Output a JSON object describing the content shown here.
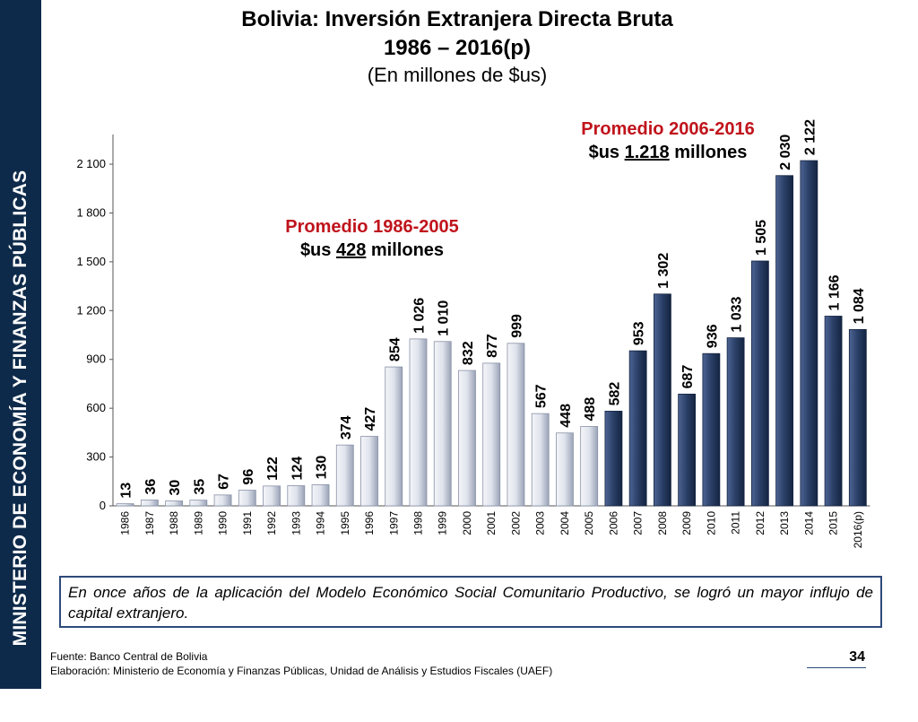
{
  "sidebar": {
    "label": "MINISTERIO DE ECONOMÍA Y FINANZAS PÚBLICAS"
  },
  "header": {
    "title_line1": "Bolivia: Inversión Extranjera Directa Bruta",
    "title_line2": "1986 – 2016(p)",
    "subtitle": "(En millones de $us)"
  },
  "annotations": {
    "avg1_heading": "Promedio 1986-2005",
    "avg1_prefix": "$us ",
    "avg1_value": "428",
    "avg1_suffix": " millones",
    "avg2_heading": "Promedio 2006-2016",
    "avg2_prefix": "$us ",
    "avg2_value": "1.218",
    "avg2_suffix": " millones"
  },
  "note": "En once años de la aplicación del Modelo Económico Social Comunitario Productivo, se logró un mayor influjo de capital extranjero.",
  "footer": {
    "source": "Fuente: Banco Central de Bolivia",
    "elaboration": "Elaboración: Ministerio de Economía y Finanzas Públicas, Unidad de Análisis y Estudios Fiscales (UAEF)"
  },
  "page_number": "34",
  "colors": {
    "sidebar": "#0e2a4a",
    "bar_light": "#dfe3ec",
    "bar_dark": "#2a3f66",
    "avg_heading": "#c0141c"
  },
  "chart_data": {
    "type": "bar",
    "categories": [
      "1986",
      "1987",
      "1988",
      "1989",
      "1990",
      "1991",
      "1992",
      "1993",
      "1994",
      "1995",
      "1996",
      "1997",
      "1998",
      "1999",
      "2000",
      "2001",
      "2002",
      "2003",
      "2004",
      "2005",
      "2006",
      "2007",
      "2008",
      "2009",
      "2010",
      "2011",
      "2012",
      "2013",
      "2014",
      "2015",
      "2016(p)"
    ],
    "values": [
      13,
      36,
      30,
      35,
      67,
      96,
      122,
      124,
      130,
      374,
      427,
      854,
      1026,
      1010,
      832,
      877,
      999,
      567,
      448,
      488,
      582,
      953,
      1302,
      687,
      936,
      1033,
      1505,
      2030,
      2122,
      1166,
      1084
    ],
    "labels": [
      "13",
      "36",
      "30",
      "35",
      "67",
      "96",
      "122",
      "124",
      "130",
      "374",
      "427",
      "854",
      "1 026",
      "1 010",
      "832",
      "877",
      "999",
      "567",
      "448",
      "488",
      "582",
      "953",
      "1 302",
      "687",
      "936",
      "1 033",
      "1 505",
      "2 030",
      "2 122",
      "1 166",
      "1 084"
    ],
    "yticks": [
      "0",
      "300",
      "600",
      "900",
      "1 200",
      "1 500",
      "1 800",
      "2 100"
    ],
    "ylim": [
      0,
      2100
    ],
    "grid": false,
    "dark_from_index": 20
  }
}
